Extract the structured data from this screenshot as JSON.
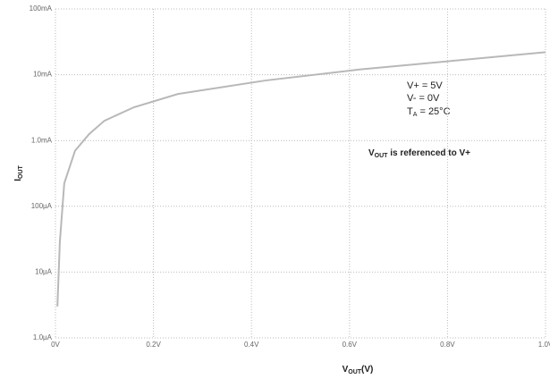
{
  "chart_data": {
    "type": "line",
    "log_y": true,
    "grid": true,
    "x_label": {
      "main": "V",
      "sub": "OUT",
      "rest": "(V)"
    },
    "y_label": {
      "main": "I",
      "sub": "OUT"
    },
    "annotations": [
      "V+ = 5V",
      "V- = 0V"
    ],
    "temp_note": {
      "main": "T",
      "sub": "A",
      "rest": " = 25°C"
    },
    "ref_note": {
      "main": "V",
      "sub": "OUT",
      "rest": " is referenced to V+"
    },
    "x": [
      0.004,
      0.009,
      0.018,
      0.04,
      0.069,
      0.1,
      0.16,
      0.25,
      0.43,
      0.62,
      0.8,
      1.0
    ],
    "series": [
      {
        "color": "#b8b8b8",
        "values": [
          0.003,
          0.029,
          0.224,
          0.7,
          1.26,
          2.0,
          3.2,
          5.1,
          8.2,
          12,
          16,
          22
        ]
      }
    ],
    "xlim": [
      0,
      1.0
    ],
    "xticks": [
      {
        "value": 0,
        "label": "0V"
      },
      {
        "value": 0.2,
        "label": "0.2V"
      },
      {
        "value": 0.4,
        "label": "0.4V"
      },
      {
        "value": 0.6,
        "label": "0.6V"
      },
      {
        "value": 0.8,
        "label": "0.8V"
      },
      {
        "value": 1.0,
        "label": "1.0V"
      }
    ],
    "ylim": [
      0.001,
      100
    ],
    "yticks": [
      {
        "value": 0.001,
        "label": "1.0µA"
      },
      {
        "value": 0.01,
        "label": "10µA"
      },
      {
        "value": 0.1,
        "label": "100µA"
      },
      {
        "value": 1,
        "label": "1.0mA"
      },
      {
        "value": 10,
        "label": "10mA"
      },
      {
        "value": 100,
        "label": "100mA"
      }
    ]
  }
}
